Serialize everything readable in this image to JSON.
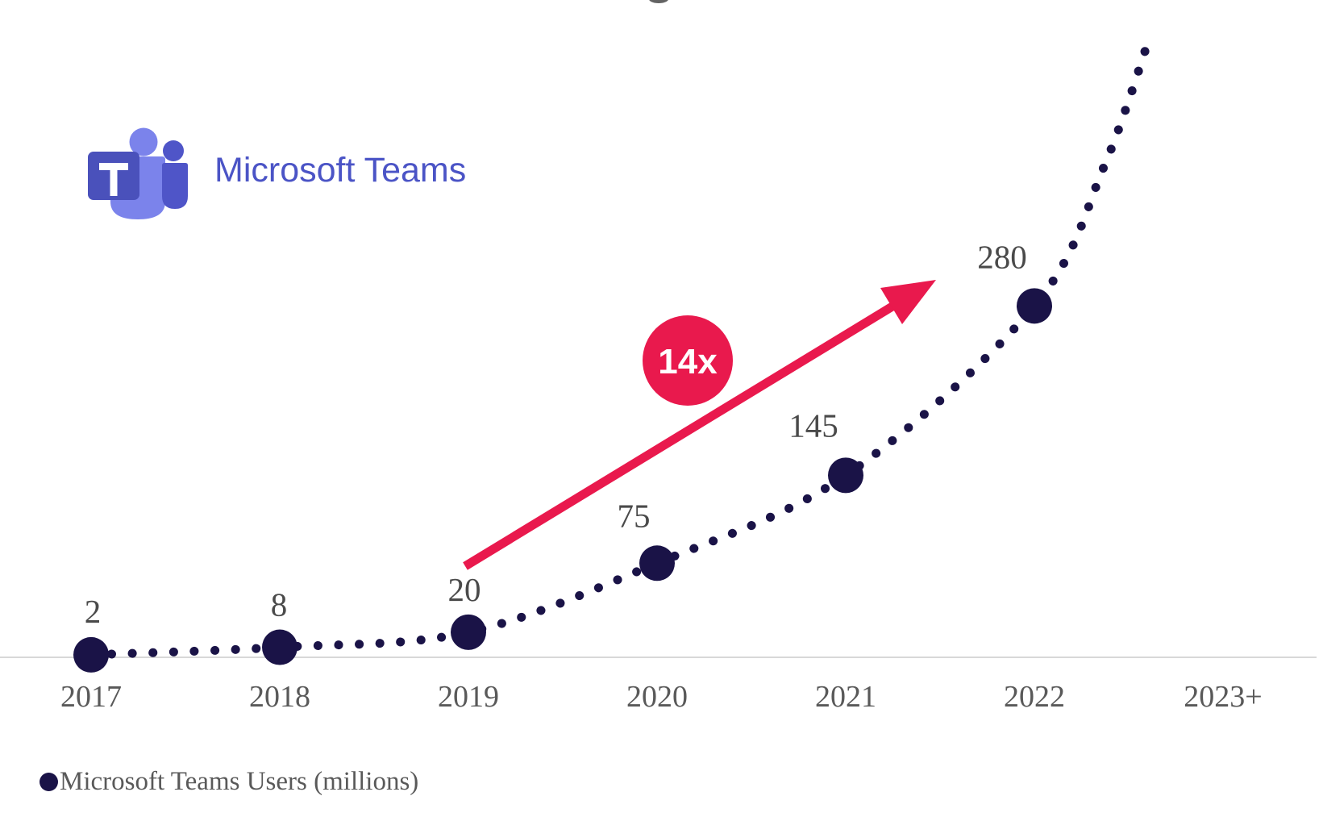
{
  "logo": {
    "text": "Microsoft Teams",
    "colors": {
      "tile": "#4a51bb",
      "tile_letter": "#ffffff",
      "person_light": "#7b83eb",
      "person_dark": "#4f55c8",
      "wordmark": "#4b54c6"
    }
  },
  "chart_data": {
    "type": "line",
    "style": "dotted smooth curve with large round markers",
    "title": "",
    "categories": [
      "2017",
      "2018",
      "2019",
      "2020",
      "2021",
      "2022",
      "2023+"
    ],
    "series": [
      {
        "name": "Microsoft Teams Users (millions)",
        "values": [
          2,
          8,
          20,
          75,
          145,
          280,
          null
        ]
      }
    ],
    "value_labels": [
      "2",
      "8",
      "20",
      "75",
      "145",
      "280"
    ],
    "ylim": [
      0,
      500
    ],
    "grid": false,
    "projection": {
      "note": "dotted curve continues rising past 2022 toward 2023+",
      "approx_end_value": 500
    },
    "annotation": {
      "label": "14x",
      "meaning": "growth arrow from 2019 to 2022"
    },
    "legend": {
      "label": "Microsoft Teams Users (millions)",
      "position": "bottom-left"
    },
    "colors": {
      "series": "#1a1347",
      "annotation": "#e9194d",
      "axis_line": "#d8d8d8",
      "value_label_text": "#4a4a4a",
      "axis_text": "#595959"
    }
  }
}
